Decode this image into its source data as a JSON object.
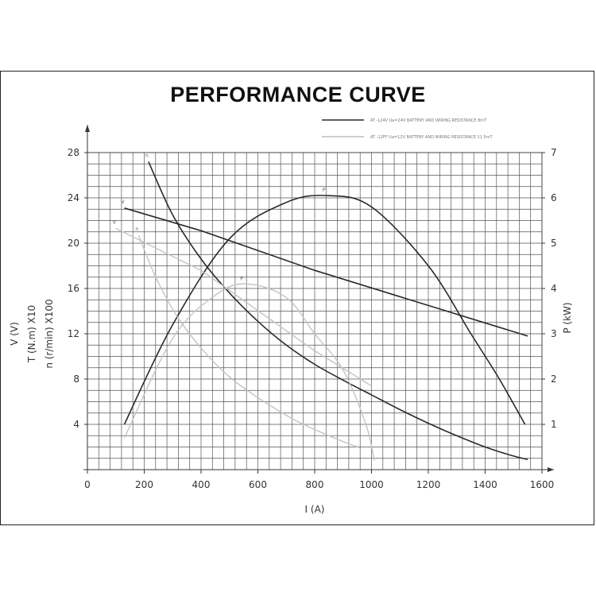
{
  "title": "PERFORMANCE CURVE",
  "chart_data": {
    "type": "line",
    "title": "PERFORMANCE CURVE",
    "xlabel": "I (A)",
    "ylabel_left": [
      "V (V)",
      "T (N.m) X10",
      "n (r/min) X100"
    ],
    "ylabel_right": "P (kW)",
    "xlim": [
      0,
      1600
    ],
    "ylim_left": [
      0,
      28
    ],
    "ylim_right": [
      0,
      7
    ],
    "x_ticks": [
      0,
      200,
      400,
      600,
      800,
      1000,
      1200,
      1400,
      1600
    ],
    "y_ticks_left": [
      4,
      8,
      12,
      16,
      20,
      24,
      28
    ],
    "y_ticks_right": [
      1,
      2,
      3,
      4,
      5,
      6,
      7
    ],
    "grid": true,
    "legend_position": "top-right",
    "legend": [
      {
        "text": "AT -L24V  Ua=24V  BATTERY AND WIRING RESISTANCE 8mT",
        "style": "solid-dark"
      },
      {
        "text": "AT -12FF  Ua=12V  BATTERY AND WIRING RESISTANCE 11.5mT",
        "style": "solid-light"
      }
    ],
    "series": [
      {
        "label": "V",
        "group": "24V",
        "axis": "left",
        "x": [
          130,
          400,
          800,
          1200,
          1550
        ],
        "y": [
          23.1,
          21.1,
          17.6,
          14.5,
          11.8
        ]
      },
      {
        "label": "n",
        "group": "24V",
        "axis": "left",
        "x": [
          215,
          300,
          400,
          500,
          600,
          700,
          800,
          900,
          1000,
          1100,
          1200,
          1300,
          1400,
          1500,
          1550
        ],
        "y": [
          27.2,
          22.5,
          18.6,
          15.6,
          13.1,
          11.0,
          9.3,
          7.9,
          6.6,
          5.3,
          4.1,
          3.0,
          2.0,
          1.2,
          0.9
        ]
      },
      {
        "label": "P",
        "group": "24V",
        "axis": "right",
        "x": [
          130,
          300,
          500,
          700,
          850,
          1000,
          1200,
          1350,
          1450,
          1540
        ],
        "y": [
          1.0,
          3.2,
          5.1,
          5.9,
          6.05,
          5.8,
          4.5,
          3.0,
          2.0,
          1.0
        ]
      },
      {
        "label": "V",
        "group": "12V",
        "axis": "left",
        "x": [
          100,
          400,
          800,
          1000
        ],
        "y": [
          21.3,
          17.6,
          10.5,
          7.4
        ]
      },
      {
        "label": "n",
        "group": "12V",
        "axis": "left",
        "x": [
          180,
          250,
          350,
          500,
          700,
          850,
          950
        ],
        "y": [
          20.7,
          16.5,
          12.3,
          8.2,
          4.8,
          3.0,
          2.0
        ]
      },
      {
        "label": "P",
        "group": "12V",
        "axis": "right",
        "x": [
          130,
          300,
          450,
          560,
          700,
          800,
          900,
          980,
          1010
        ],
        "y": [
          0.7,
          2.9,
          3.85,
          4.1,
          3.8,
          3.0,
          2.2,
          1.0,
          0.2
        ]
      }
    ]
  }
}
